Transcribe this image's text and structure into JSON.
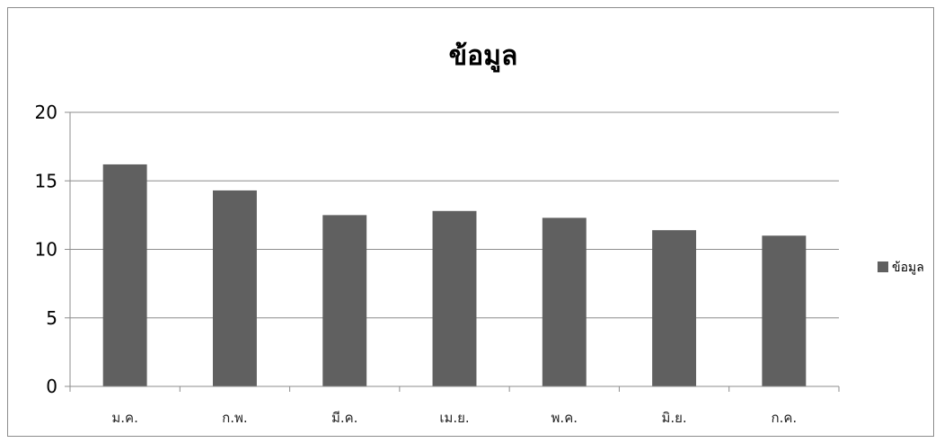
{
  "chart_data": {
    "type": "bar",
    "title": "ข้อมูล",
    "xlabel": "",
    "ylabel": "",
    "categories": [
      "ม.ค.",
      "ก.พ.",
      "มี.ค.",
      "เม.ย.",
      "พ.ค.",
      "มิ.ย.",
      "ก.ค."
    ],
    "series": [
      {
        "name": "ข้อมูล",
        "values": [
          16.2,
          14.3,
          12.5,
          12.8,
          12.3,
          11.4,
          11.0
        ]
      }
    ],
    "ylim": [
      0,
      20
    ],
    "yticks": [
      0,
      5,
      10,
      15,
      20
    ],
    "grid": true,
    "legend_position": "right",
    "colors": {
      "bar": "#606060",
      "gridline": "#8c8c8c",
      "axis": "#8c8c8c"
    }
  }
}
